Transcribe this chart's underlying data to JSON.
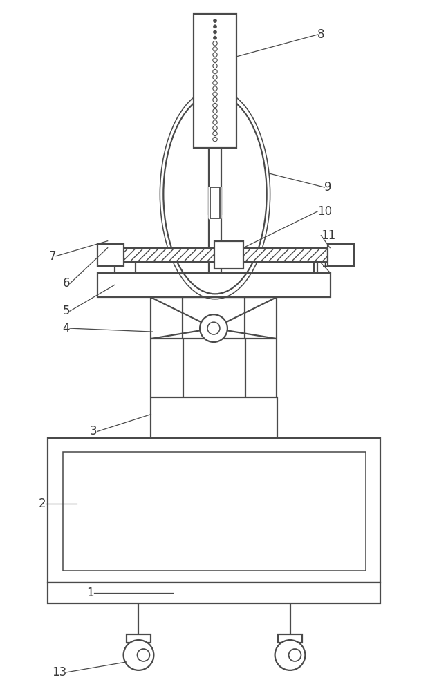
{
  "bg_color": "#ffffff",
  "line_color": "#4a4a4a",
  "line_width": 1.6,
  "label_fontsize": 12,
  "label_color": "#3a3a3a",
  "fig_w": 6.19,
  "fig_h": 10.0,
  "dpi": 100
}
